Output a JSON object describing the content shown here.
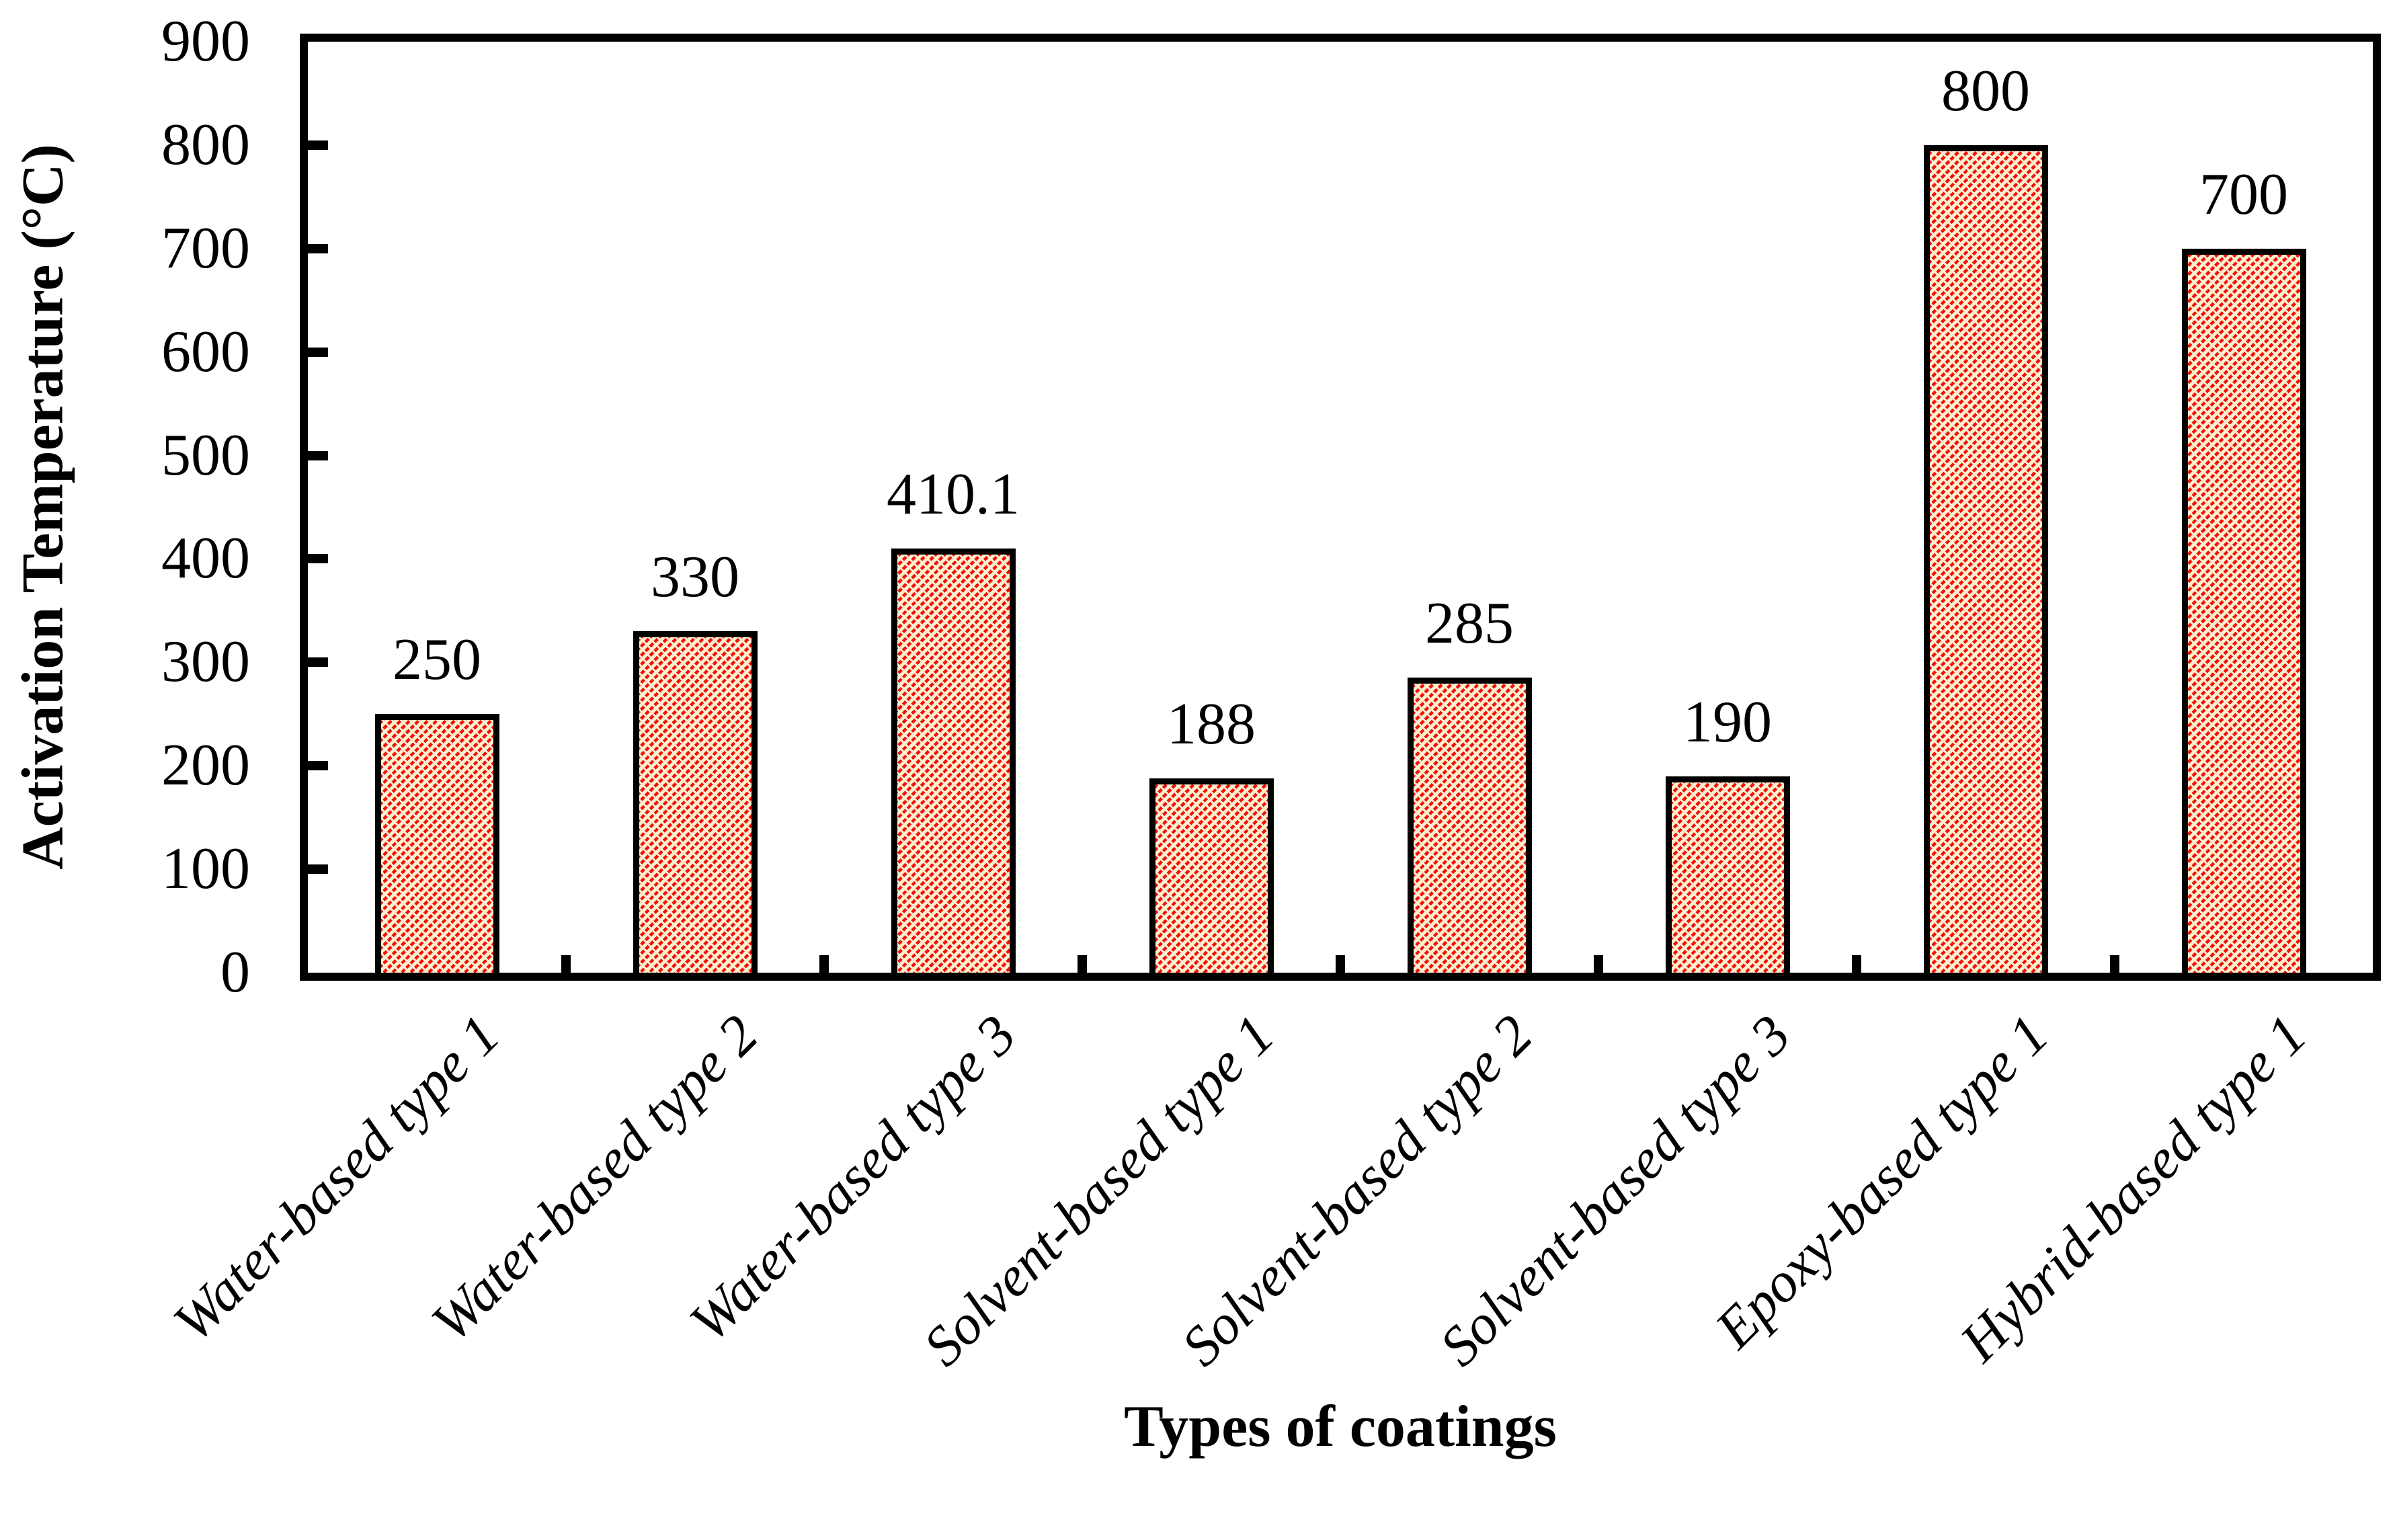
{
  "chart_data": {
    "type": "bar",
    "title": "",
    "xlabel": "Types of coatings",
    "ylabel": "Activation Temperature (°C)",
    "categories": [
      "Water-based type 1",
      "Water-based type 2",
      "Water-based type 3",
      "Solvent-based type 1",
      "Solvent-based type 2",
      "Solvent-based type 3",
      "Epoxy-based type 1",
      "Hybrid-based type 1"
    ],
    "values": [
      250,
      330,
      410.1,
      188,
      285,
      190,
      800,
      700
    ],
    "value_labels": [
      "250",
      "330",
      "410.1",
      "188",
      "285",
      "190",
      "800",
      "700"
    ],
    "ylim": [
      0,
      900
    ],
    "yticks": [
      0,
      100,
      200,
      300,
      400,
      500,
      600,
      700,
      800,
      900
    ],
    "grid": false,
    "legend": "none",
    "colors": {
      "bar_fill": "#FBF0D1",
      "hatch": "#F6100A",
      "bar_border": "#000000",
      "axis": "#000000",
      "text": "#000000"
    }
  }
}
